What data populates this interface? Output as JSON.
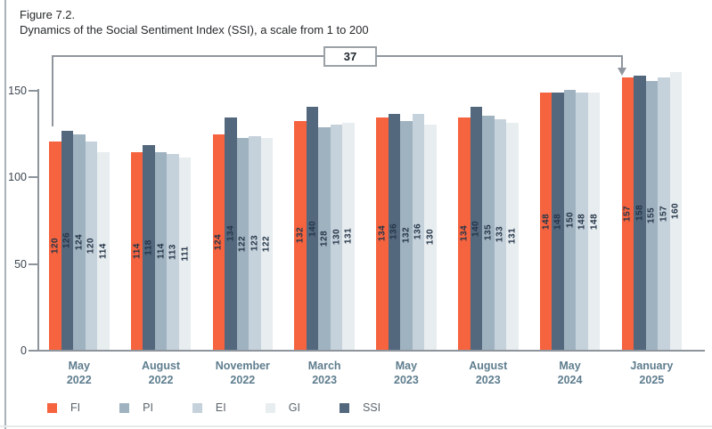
{
  "figure": {
    "label": "Figure 7.2.",
    "title": "Dynamics of the Social Sentiment Index (SSI), a scale from 1 to 200"
  },
  "chart_data": {
    "type": "bar",
    "title": "Dynamics of the Social Sentiment Index (SSI), a scale from 1 to 200",
    "categories": [
      "May 2022",
      "August 2022",
      "November 2022",
      "March 2023",
      "May 2023",
      "August 2023",
      "May 2024",
      "January 2025"
    ],
    "category_labels": [
      [
        "May",
        "2022"
      ],
      [
        "August",
        "2022"
      ],
      [
        "November",
        "2022"
      ],
      [
        "March",
        "2023"
      ],
      [
        "May",
        "2023"
      ],
      [
        "August",
        "2023"
      ],
      [
        "May",
        "2024"
      ],
      [
        "January",
        "2025"
      ]
    ],
    "series": [
      {
        "name": "FI",
        "color": "#f5633f",
        "values": [
          120,
          114,
          124,
          132,
          134,
          134,
          148,
          157
        ]
      },
      {
        "name": "PI",
        "color": "#9fb2c0",
        "values": [
          124,
          114,
          122,
          128,
          132,
          135,
          150,
          155
        ]
      },
      {
        "name": "EI",
        "color": "#c6d2db",
        "values": [
          120,
          113,
          123,
          130,
          136,
          133,
          148,
          157
        ]
      },
      {
        "name": "GI",
        "color": "#e8edf0",
        "values": [
          114,
          111,
          122,
          131,
          130,
          131,
          148,
          160
        ]
      },
      {
        "name": "SSI",
        "color": "#53687d",
        "values": [
          126,
          118,
          134,
          140,
          136,
          140,
          148,
          158
        ]
      }
    ],
    "bar_display_order": [
      "FI",
      "SSI",
      "PI",
      "EI",
      "GI"
    ],
    "y_ticks": [
      0,
      50,
      100,
      150
    ],
    "ylim": [
      0,
      150
    ],
    "grid": false,
    "legend_position": "bottom-left",
    "annotation": {
      "label": "37",
      "series": "FI",
      "from_category": "May 2022",
      "to_category": "January 2025"
    }
  }
}
